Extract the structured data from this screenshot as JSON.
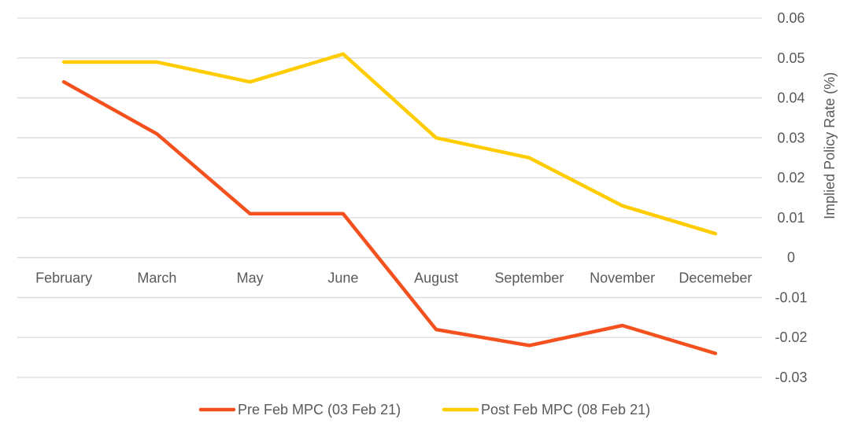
{
  "chart_data": {
    "type": "line",
    "categories": [
      "February",
      "March",
      "May",
      "June",
      "August",
      "September",
      "November",
      "Decemeber"
    ],
    "series": [
      {
        "name": "Pre Feb MPC (03 Feb 21)",
        "color": "#f4511e",
        "values": [
          0.044,
          0.031,
          0.011,
          0.011,
          -0.018,
          -0.022,
          -0.017,
          -0.024
        ]
      },
      {
        "name": "Post Feb MPC (08 Feb 21)",
        "color": "#ffcc00",
        "values": [
          0.049,
          0.049,
          0.044,
          0.051,
          0.03,
          0.025,
          0.013,
          0.006
        ]
      }
    ],
    "ylabel": "Implied Policy Rate (%)",
    "ylim": [
      -0.03,
      0.06
    ],
    "yticks": [
      "0.06",
      "0.05",
      "0.04",
      "0.03",
      "0.02",
      "0.01",
      "0",
      "-0.01",
      "-0.02",
      "-0.03"
    ],
    "y_axis_side": "right",
    "category_labels_at_zero": true,
    "grid": true,
    "legend_position": "bottom"
  }
}
